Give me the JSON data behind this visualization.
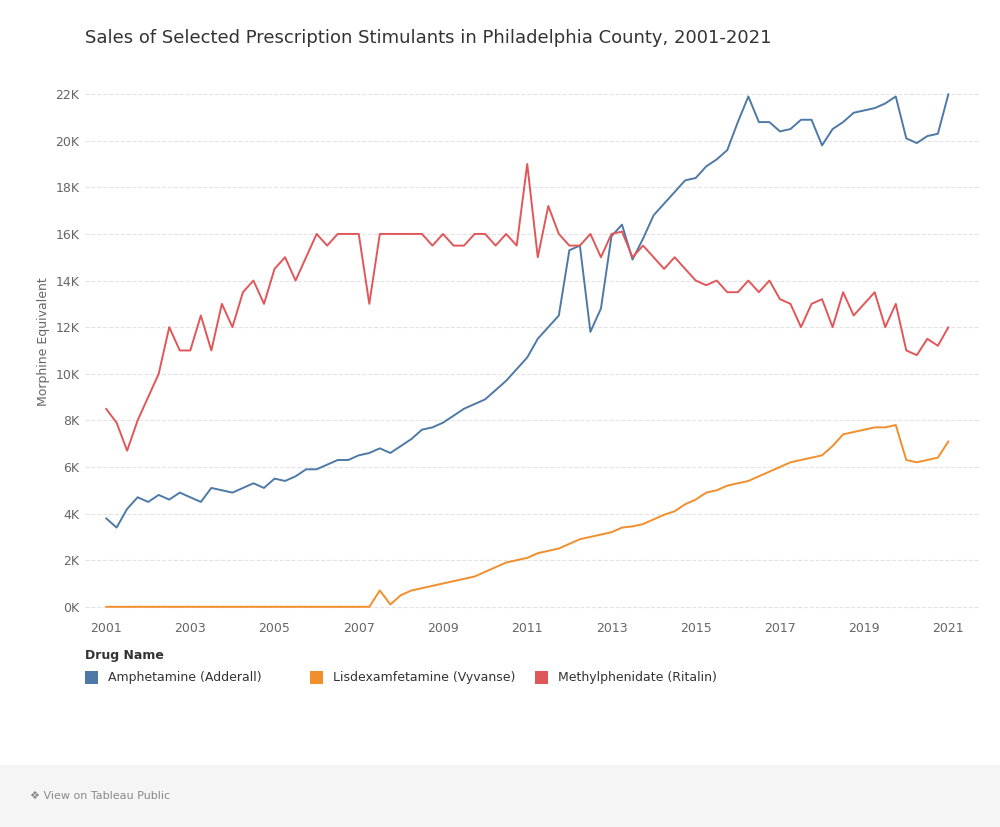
{
  "title": "Sales of Selected Prescription Stimulants in Philadelphia County, 2001-2021",
  "ylabel": "Morphine Equivalent",
  "background_color": "#ffffff",
  "grid_color": "#d8d8d8",
  "legend_title": "Drug Name",
  "xlim": [
    2000.5,
    2021.75
  ],
  "ylim": [
    -400,
    23200
  ],
  "yticks": [
    0,
    2000,
    4000,
    6000,
    8000,
    10000,
    12000,
    14000,
    16000,
    18000,
    20000,
    22000
  ],
  "ytick_labels": [
    "0K",
    "2K",
    "4K",
    "6K",
    "8K",
    "10K",
    "12K",
    "14K",
    "16K",
    "18K",
    "20K",
    "22K"
  ],
  "xticks": [
    2001,
    2003,
    2005,
    2007,
    2009,
    2011,
    2013,
    2015,
    2017,
    2019,
    2021
  ],
  "series": [
    {
      "name": "Amphetamine (Adderall)",
      "color": "#4e79a7",
      "data_x": [
        2001.0,
        2001.25,
        2001.5,
        2001.75,
        2002.0,
        2002.25,
        2002.5,
        2002.75,
        2003.0,
        2003.25,
        2003.5,
        2003.75,
        2004.0,
        2004.25,
        2004.5,
        2004.75,
        2005.0,
        2005.25,
        2005.5,
        2005.75,
        2006.0,
        2006.25,
        2006.5,
        2006.75,
        2007.0,
        2007.25,
        2007.5,
        2007.75,
        2008.0,
        2008.25,
        2008.5,
        2008.75,
        2009.0,
        2009.25,
        2009.5,
        2009.75,
        2010.0,
        2010.25,
        2010.5,
        2010.75,
        2011.0,
        2011.25,
        2011.5,
        2011.75,
        2012.0,
        2012.25,
        2012.5,
        2012.75,
        2013.0,
        2013.25,
        2013.5,
        2013.75,
        2014.0,
        2014.25,
        2014.5,
        2014.75,
        2015.0,
        2015.25,
        2015.5,
        2015.75,
        2016.0,
        2016.25,
        2016.5,
        2016.75,
        2017.0,
        2017.25,
        2017.5,
        2017.75,
        2018.0,
        2018.25,
        2018.5,
        2018.75,
        2019.0,
        2019.25,
        2019.5,
        2019.75,
        2020.0,
        2020.25,
        2020.5,
        2020.75,
        2021.0
      ],
      "data_y": [
        3800,
        3400,
        4200,
        4700,
        4500,
        4800,
        4600,
        4900,
        4700,
        4500,
        5100,
        5000,
        4900,
        5100,
        5300,
        5100,
        5500,
        5400,
        5600,
        5900,
        5900,
        6100,
        6300,
        6300,
        6500,
        6600,
        6800,
        6600,
        6900,
        7200,
        7600,
        7700,
        7900,
        8200,
        8500,
        8700,
        8900,
        9300,
        9700,
        10200,
        10700,
        11500,
        12000,
        12500,
        15300,
        15500,
        11800,
        12800,
        15900,
        16400,
        14900,
        15800,
        16800,
        17300,
        17800,
        18300,
        18400,
        18900,
        19200,
        19600,
        20800,
        21900,
        20800,
        20800,
        20400,
        20500,
        20900,
        20900,
        19800,
        20500,
        20800,
        21200,
        21300,
        21400,
        21600,
        21900,
        20100,
        19900,
        20200,
        20300,
        22000
      ]
    },
    {
      "name": "Lisdexamfetamine (Vyvanse)",
      "color": "#f28e2b",
      "data_x": [
        2001.0,
        2001.25,
        2001.5,
        2001.75,
        2002.0,
        2002.25,
        2002.5,
        2002.75,
        2003.0,
        2003.25,
        2003.5,
        2003.75,
        2004.0,
        2004.25,
        2004.5,
        2004.75,
        2005.0,
        2005.25,
        2005.5,
        2005.75,
        2006.0,
        2006.25,
        2006.5,
        2006.75,
        2007.0,
        2007.25,
        2007.5,
        2007.75,
        2008.0,
        2008.25,
        2008.5,
        2008.75,
        2009.0,
        2009.25,
        2009.5,
        2009.75,
        2010.0,
        2010.25,
        2010.5,
        2010.75,
        2011.0,
        2011.25,
        2011.5,
        2011.75,
        2012.0,
        2012.25,
        2012.5,
        2012.75,
        2013.0,
        2013.25,
        2013.5,
        2013.75,
        2014.0,
        2014.25,
        2014.5,
        2014.75,
        2015.0,
        2015.25,
        2015.5,
        2015.75,
        2016.0,
        2016.25,
        2016.5,
        2016.75,
        2017.0,
        2017.25,
        2017.5,
        2017.75,
        2018.0,
        2018.25,
        2018.5,
        2018.75,
        2019.0,
        2019.25,
        2019.5,
        2019.75,
        2020.0,
        2020.25,
        2020.5,
        2020.75,
        2021.0
      ],
      "data_y": [
        0,
        0,
        0,
        0,
        0,
        0,
        0,
        0,
        0,
        0,
        0,
        0,
        0,
        0,
        0,
        0,
        0,
        0,
        0,
        0,
        0,
        0,
        0,
        0,
        0,
        0,
        700,
        100,
        500,
        700,
        800,
        900,
        1000,
        1100,
        1200,
        1300,
        1500,
        1700,
        1900,
        2000,
        2100,
        2300,
        2400,
        2500,
        2700,
        2900,
        3000,
        3100,
        3200,
        3400,
        3450,
        3550,
        3750,
        3950,
        4100,
        4400,
        4600,
        4900,
        5000,
        5200,
        5300,
        5400,
        5600,
        5800,
        6000,
        6200,
        6300,
        6400,
        6500,
        6900,
        7400,
        7500,
        7600,
        7700,
        7700,
        7800,
        6300,
        6200,
        6300,
        6400,
        7100
      ]
    },
    {
      "name": "Methylphenidate (Ritalin)",
      "color": "#e15759",
      "data_x": [
        2001.0,
        2001.25,
        2001.5,
        2001.75,
        2002.0,
        2002.25,
        2002.5,
        2002.75,
        2003.0,
        2003.25,
        2003.5,
        2003.75,
        2004.0,
        2004.25,
        2004.5,
        2004.75,
        2005.0,
        2005.25,
        2005.5,
        2005.75,
        2006.0,
        2006.25,
        2006.5,
        2006.75,
        2007.0,
        2007.25,
        2007.5,
        2007.75,
        2008.0,
        2008.25,
        2008.5,
        2008.75,
        2009.0,
        2009.25,
        2009.5,
        2009.75,
        2010.0,
        2010.25,
        2010.5,
        2010.75,
        2011.0,
        2011.25,
        2011.5,
        2011.75,
        2012.0,
        2012.25,
        2012.5,
        2012.75,
        2013.0,
        2013.25,
        2013.5,
        2013.75,
        2014.0,
        2014.25,
        2014.5,
        2014.75,
        2015.0,
        2015.25,
        2015.5,
        2015.75,
        2016.0,
        2016.25,
        2016.5,
        2016.75,
        2017.0,
        2017.25,
        2017.5,
        2017.75,
        2018.0,
        2018.25,
        2018.5,
        2018.75,
        2019.0,
        2019.25,
        2019.5,
        2019.75,
        2020.0,
        2020.25,
        2020.5,
        2020.75,
        2021.0
      ],
      "data_y": [
        8500,
        7900,
        6700,
        8000,
        9000,
        10000,
        12000,
        11000,
        11000,
        12500,
        11000,
        13000,
        12000,
        13500,
        14000,
        13000,
        14500,
        15000,
        14000,
        15000,
        16000,
        15500,
        16000,
        16000,
        16000,
        13000,
        16000,
        16000,
        16000,
        16000,
        16000,
        15500,
        16000,
        15500,
        15500,
        16000,
        16000,
        15500,
        16000,
        15500,
        19000,
        15000,
        17200,
        16000,
        15500,
        15500,
        16000,
        15000,
        16000,
        16100,
        15000,
        15500,
        15000,
        14500,
        15000,
        14500,
        14000,
        13800,
        14000,
        13500,
        13500,
        14000,
        13500,
        14000,
        13200,
        13000,
        12000,
        13000,
        13200,
        12000,
        13500,
        12500,
        13000,
        13500,
        12000,
        13000,
        11000,
        10800,
        11500,
        11200,
        12000
      ]
    }
  ],
  "footer_text": "❖ View on Tableau Public",
  "footer_bar_color": "#f0f0f0",
  "title_fontsize": 13,
  "axis_label_fontsize": 9,
  "tick_fontsize": 9,
  "legend_fontsize": 9,
  "line_width": 1.4
}
